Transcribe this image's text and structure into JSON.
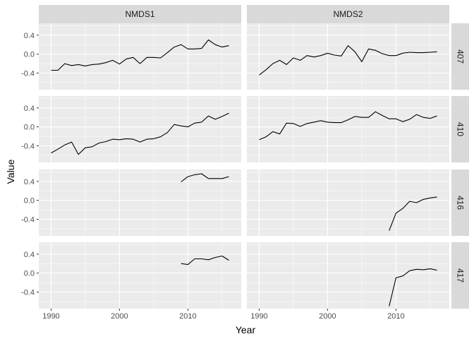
{
  "chart_data": {
    "type": "line",
    "facet": "grid",
    "xlabel": "Year",
    "ylabel": "Value",
    "xlim": [
      1988.2,
      2017.8
    ],
    "ylim": [
      -0.75,
      0.65
    ],
    "x_ticks": [
      1990,
      2000,
      2010
    ],
    "y_ticks": [
      -0.4,
      0.0,
      0.4
    ],
    "y_tick_labels": [
      "-0.4",
      "0.0",
      "0.4"
    ],
    "columns": [
      "NMDS1",
      "NMDS2"
    ],
    "rows": [
      "407",
      "410",
      "416",
      "417"
    ],
    "colors": {
      "panel": "#ebebeb",
      "strip": "#d9d9d9",
      "grid_major": "#ffffff",
      "line": "#000000"
    },
    "panels": [
      {
        "row": "407",
        "col": "NMDS1",
        "x": [
          1990,
          1991,
          1992,
          1993,
          1994,
          1995,
          1996,
          1997,
          1998,
          1999,
          2000,
          2001,
          2002,
          2003,
          2004,
          2005,
          2006,
          2007,
          2008,
          2009,
          2010,
          2011,
          2012,
          2013,
          2014,
          2015,
          2016
        ],
        "y": [
          -0.34,
          -0.34,
          -0.2,
          -0.24,
          -0.22,
          -0.25,
          -0.22,
          -0.21,
          -0.18,
          -0.13,
          -0.21,
          -0.1,
          -0.07,
          -0.2,
          -0.07,
          -0.07,
          -0.08,
          0.03,
          0.15,
          0.2,
          0.11,
          0.11,
          0.12,
          0.3,
          0.2,
          0.15,
          0.18
        ]
      },
      {
        "row": "407",
        "col": "NMDS2",
        "x": [
          1990,
          1991,
          1992,
          1993,
          1994,
          1995,
          1996,
          1997,
          1998,
          1999,
          2000,
          2001,
          2002,
          2003,
          2004,
          2005,
          2006,
          2007,
          2008,
          2009,
          2010,
          2011,
          2012,
          2013,
          2014,
          2015,
          2016
        ],
        "y": [
          -0.44,
          -0.33,
          -0.2,
          -0.13,
          -0.22,
          -0.08,
          -0.13,
          -0.03,
          -0.06,
          -0.03,
          0.02,
          -0.02,
          -0.04,
          0.18,
          0.05,
          -0.16,
          0.11,
          0.08,
          0.01,
          -0.03,
          -0.03,
          0.02,
          0.04,
          0.03,
          0.03,
          0.04,
          0.05
        ]
      },
      {
        "row": "410",
        "col": "NMDS1",
        "x": [
          1990,
          1991,
          1992,
          1993,
          1994,
          1995,
          1996,
          1997,
          1998,
          1999,
          2000,
          2001,
          2002,
          2003,
          2004,
          2005,
          2006,
          2007,
          2008,
          2009,
          2010,
          2011,
          2012,
          2013,
          2014,
          2015,
          2016
        ],
        "y": [
          -0.55,
          -0.47,
          -0.38,
          -0.32,
          -0.58,
          -0.44,
          -0.42,
          -0.34,
          -0.31,
          -0.26,
          -0.27,
          -0.25,
          -0.26,
          -0.32,
          -0.26,
          -0.25,
          -0.21,
          -0.12,
          0.05,
          0.02,
          0.0,
          0.08,
          0.1,
          0.23,
          0.16,
          0.22,
          0.29
        ]
      },
      {
        "row": "410",
        "col": "NMDS2",
        "x": [
          1990,
          1991,
          1992,
          1993,
          1994,
          1995,
          1996,
          1997,
          1998,
          1999,
          2000,
          2001,
          2002,
          2003,
          2004,
          2005,
          2006,
          2007,
          2008,
          2009,
          2010,
          2011,
          2012,
          2013,
          2014,
          2015,
          2016
        ],
        "y": [
          -0.27,
          -0.21,
          -0.1,
          -0.15,
          0.08,
          0.07,
          0.01,
          0.07,
          0.1,
          0.13,
          0.1,
          0.09,
          0.09,
          0.15,
          0.22,
          0.2,
          0.2,
          0.32,
          0.24,
          0.17,
          0.17,
          0.11,
          0.16,
          0.26,
          0.2,
          0.18,
          0.23
        ]
      },
      {
        "row": "416",
        "col": "NMDS1",
        "x": [
          2009,
          2010,
          2011,
          2012,
          2013,
          2014,
          2015,
          2016
        ],
        "y": [
          0.39,
          0.5,
          0.54,
          0.56,
          0.46,
          0.46,
          0.46,
          0.5
        ]
      },
      {
        "row": "416",
        "col": "NMDS2",
        "x": [
          2009,
          2010,
          2011,
          2012,
          2013,
          2014,
          2015,
          2016
        ],
        "y": [
          -0.64,
          -0.27,
          -0.17,
          -0.02,
          -0.05,
          0.02,
          0.05,
          0.07
        ]
      },
      {
        "row": "417",
        "col": "NMDS1",
        "x": [
          2009,
          2010,
          2011,
          2012,
          2013,
          2014,
          2015,
          2016
        ],
        "y": [
          0.2,
          0.18,
          0.3,
          0.3,
          0.28,
          0.33,
          0.36,
          0.27
        ]
      },
      {
        "row": "417",
        "col": "NMDS2",
        "x": [
          2009,
          2010,
          2011,
          2012,
          2013,
          2014,
          2015,
          2016
        ],
        "y": [
          -0.7,
          -0.1,
          -0.06,
          0.05,
          0.08,
          0.07,
          0.09,
          0.06
        ]
      }
    ]
  }
}
